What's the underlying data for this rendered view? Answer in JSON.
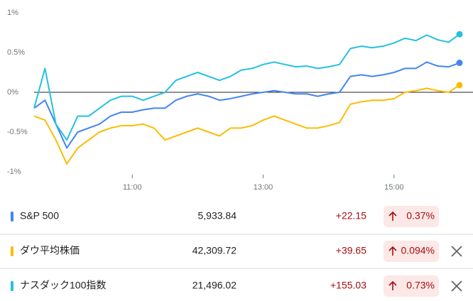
{
  "chart_data": {
    "type": "line",
    "x": [
      "9:30",
      "9:40",
      "9:50",
      "10:00",
      "10:10",
      "10:20",
      "10:30",
      "10:40",
      "10:50",
      "11:00",
      "11:10",
      "11:20",
      "11:30",
      "11:40",
      "11:50",
      "12:00",
      "12:10",
      "12:20",
      "12:30",
      "12:40",
      "12:50",
      "13:00",
      "13:10",
      "13:20",
      "13:30",
      "13:40",
      "13:50",
      "14:00",
      "14:10",
      "14:20",
      "14:30",
      "14:40",
      "14:50",
      "15:00",
      "15:10",
      "15:20",
      "15:30",
      "15:40",
      "15:50",
      "16:00"
    ],
    "xticks": [
      "11:00",
      "13:00",
      "15:00"
    ],
    "ylim": [
      -1,
      1
    ],
    "yticks": [
      {
        "value": 1,
        "label": "1%"
      },
      {
        "value": 0.5,
        "label": "0.5%"
      },
      {
        "value": 0,
        "label": "0%"
      },
      {
        "value": -0.5,
        "label": "-0.5%"
      },
      {
        "value": -1,
        "label": "-1%"
      }
    ],
    "grid": false,
    "series": [
      {
        "name": "S&P 500",
        "color": "#4285f4",
        "values": [
          -0.2,
          -0.1,
          -0.4,
          -0.7,
          -0.5,
          -0.45,
          -0.4,
          -0.3,
          -0.25,
          -0.25,
          -0.22,
          -0.2,
          -0.2,
          -0.1,
          -0.05,
          -0.02,
          -0.05,
          -0.1,
          -0.08,
          -0.05,
          -0.02,
          0.0,
          0.02,
          0.0,
          -0.02,
          -0.02,
          -0.05,
          -0.02,
          0.0,
          0.2,
          0.22,
          0.2,
          0.22,
          0.25,
          0.3,
          0.3,
          0.38,
          0.33,
          0.32,
          0.37
        ]
      },
      {
        "name": "ダウ平均株価",
        "color": "#fbbc04",
        "values": [
          -0.3,
          -0.35,
          -0.6,
          -0.9,
          -0.7,
          -0.6,
          -0.5,
          -0.45,
          -0.42,
          -0.42,
          -0.4,
          -0.45,
          -0.6,
          -0.55,
          -0.5,
          -0.45,
          -0.5,
          -0.55,
          -0.45,
          -0.45,
          -0.42,
          -0.35,
          -0.3,
          -0.35,
          -0.4,
          -0.45,
          -0.45,
          -0.42,
          -0.38,
          -0.15,
          -0.12,
          -0.1,
          -0.1,
          -0.08,
          0.0,
          0.02,
          0.05,
          0.02,
          0.0,
          0.09
        ]
      },
      {
        "name": "ナスダック100指数",
        "color": "#24c1e0",
        "values": [
          -0.2,
          0.3,
          -0.4,
          -0.6,
          -0.3,
          -0.3,
          -0.2,
          -0.1,
          -0.05,
          -0.05,
          -0.1,
          -0.05,
          0.0,
          0.15,
          0.2,
          0.25,
          0.2,
          0.15,
          0.2,
          0.28,
          0.3,
          0.35,
          0.38,
          0.35,
          0.32,
          0.33,
          0.3,
          0.32,
          0.35,
          0.55,
          0.58,
          0.56,
          0.58,
          0.62,
          0.68,
          0.65,
          0.72,
          0.66,
          0.63,
          0.73
        ]
      }
    ]
  },
  "table": {
    "rows": [
      {
        "price": "5,933.84",
        "change": "+22.15",
        "percent": "0.37%",
        "closable": false
      },
      {
        "price": "42,309.72",
        "change": "+39.65",
        "percent": "0.094%",
        "closable": true
      },
      {
        "price": "21,496.02",
        "change": "+155.03",
        "percent": "0.73%",
        "closable": true
      }
    ]
  }
}
